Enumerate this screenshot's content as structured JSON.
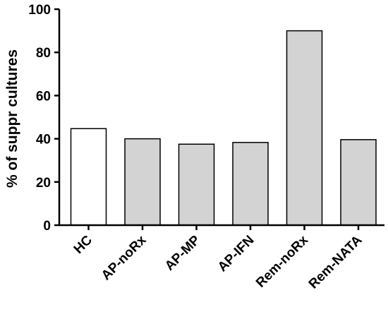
{
  "chart_data": {
    "type": "bar",
    "title": "",
    "xlabel": "",
    "ylabel": "% of suppr cultures",
    "categories": [
      "HC",
      "AP-noRx",
      "AP-MP",
      "AP-IFN",
      "Rem-noRx",
      "Rem-NATA"
    ],
    "values": [
      44.7,
      40,
      37.5,
      38.3,
      90,
      39.6
    ],
    "ylim": [
      0,
      100
    ],
    "yticks": [
      "0",
      "20",
      "40",
      "60",
      "80",
      "100"
    ],
    "grid": false,
    "legend": "none",
    "bar_colors": [
      "#ffffff",
      "#d3d3d3",
      "#d3d3d3",
      "#d3d3d3",
      "#d3d3d3",
      "#d3d3d3"
    ],
    "bar_edge_color": "#000000"
  }
}
